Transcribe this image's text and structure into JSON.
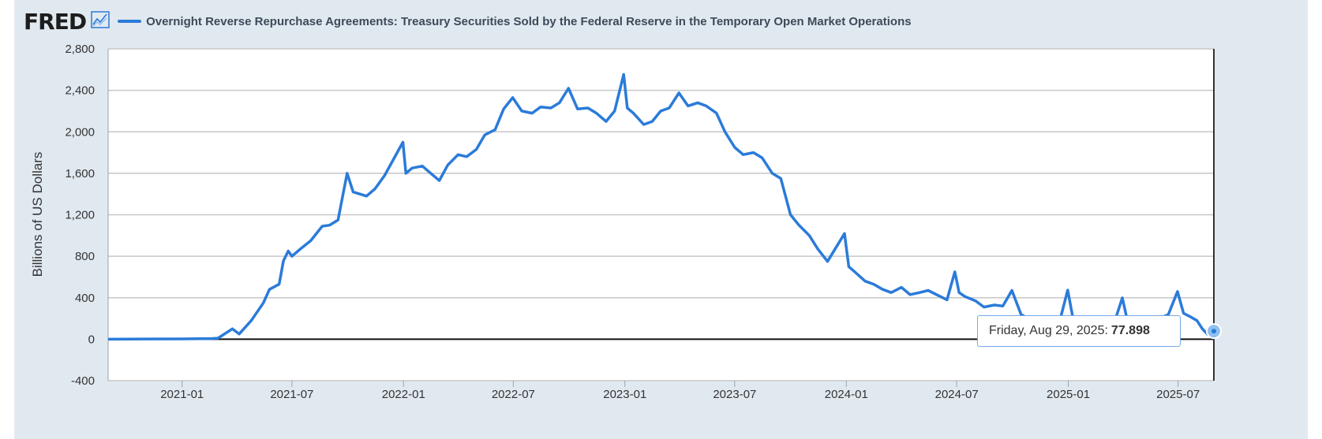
{
  "header": {
    "logo": "FRED",
    "logo_icon": "line-chart-icon",
    "title": "Overnight Reverse Repurchase Agreements: Treasury Securities Sold by the Federal Reserve in the Temporary Open Market Operations"
  },
  "tooltip": {
    "date": "Friday, Aug 29, 2025:",
    "value": "77.898"
  },
  "colors": {
    "series": "#2b7bd9",
    "background": "#e1e9f0",
    "plot": "#ffffff",
    "grid": "#c7c7c7"
  },
  "chart_data": {
    "type": "line",
    "title": "Overnight Reverse Repurchase Agreements: Treasury Securities Sold by the Federal Reserve in the Temporary Open Market Operations",
    "ylabel": "Billions of US Dollars",
    "xlabel": "",
    "ylim": [
      -400,
      2800
    ],
    "yticks": [
      -400,
      0,
      400,
      800,
      1200,
      1600,
      2000,
      2400,
      2800
    ],
    "ytick_labels": [
      "-400",
      "0",
      "400",
      "800",
      "1,200",
      "1,600",
      "2,000",
      "2,400",
      "2,800"
    ],
    "xlim": [
      "2020-09-01",
      "2025-08-29"
    ],
    "xticks": [
      "2021-01",
      "2021-07",
      "2022-01",
      "2022-07",
      "2023-01",
      "2023-07",
      "2024-01",
      "2024-07",
      "2025-01",
      "2025-07"
    ],
    "grid": true,
    "series": [
      {
        "color": "#2b7bd9",
        "points": [
          [
            "2020-09-01",
            0
          ],
          [
            "2020-11-01",
            2
          ],
          [
            "2021-01-01",
            3
          ],
          [
            "2021-02-15",
            5
          ],
          [
            "2021-03-01",
            10
          ],
          [
            "2021-03-25",
            100
          ],
          [
            "2021-04-05",
            50
          ],
          [
            "2021-04-25",
            180
          ],
          [
            "2021-05-15",
            350
          ],
          [
            "2021-05-25",
            480
          ],
          [
            "2021-06-10",
            530
          ],
          [
            "2021-06-17",
            755
          ],
          [
            "2021-06-25",
            850
          ],
          [
            "2021-07-01",
            800
          ],
          [
            "2021-07-15",
            870
          ],
          [
            "2021-08-01",
            950
          ],
          [
            "2021-08-20",
            1090
          ],
          [
            "2021-09-01",
            1100
          ],
          [
            "2021-09-15",
            1150
          ],
          [
            "2021-09-30",
            1600
          ],
          [
            "2021-10-10",
            1420
          ],
          [
            "2021-11-01",
            1380
          ],
          [
            "2021-11-15",
            1450
          ],
          [
            "2021-12-01",
            1580
          ],
          [
            "2021-12-31",
            1900
          ],
          [
            "2022-01-05",
            1600
          ],
          [
            "2022-01-15",
            1650
          ],
          [
            "2022-02-01",
            1670
          ],
          [
            "2022-02-15",
            1600
          ],
          [
            "2022-03-01",
            1530
          ],
          [
            "2022-03-15",
            1680
          ],
          [
            "2022-04-01",
            1780
          ],
          [
            "2022-04-15",
            1760
          ],
          [
            "2022-05-01",
            1830
          ],
          [
            "2022-05-15",
            1970
          ],
          [
            "2022-06-01",
            2020
          ],
          [
            "2022-06-15",
            2220
          ],
          [
            "2022-06-30",
            2330
          ],
          [
            "2022-07-15",
            2200
          ],
          [
            "2022-08-01",
            2180
          ],
          [
            "2022-08-15",
            2240
          ],
          [
            "2022-09-01",
            2230
          ],
          [
            "2022-09-15",
            2280
          ],
          [
            "2022-09-30",
            2420
          ],
          [
            "2022-10-15",
            2220
          ],
          [
            "2022-11-01",
            2230
          ],
          [
            "2022-11-15",
            2180
          ],
          [
            "2022-12-01",
            2100
          ],
          [
            "2022-12-15",
            2200
          ],
          [
            "2022-12-30",
            2554
          ],
          [
            "2023-01-05",
            2230
          ],
          [
            "2023-01-15",
            2180
          ],
          [
            "2023-02-01",
            2070
          ],
          [
            "2023-02-15",
            2100
          ],
          [
            "2023-03-01",
            2200
          ],
          [
            "2023-03-15",
            2230
          ],
          [
            "2023-03-31",
            2375
          ],
          [
            "2023-04-15",
            2250
          ],
          [
            "2023-05-01",
            2280
          ],
          [
            "2023-05-15",
            2250
          ],
          [
            "2023-06-01",
            2180
          ],
          [
            "2023-06-15",
            2000
          ],
          [
            "2023-07-01",
            1850
          ],
          [
            "2023-07-15",
            1780
          ],
          [
            "2023-08-01",
            1800
          ],
          [
            "2023-08-15",
            1750
          ],
          [
            "2023-09-01",
            1600
          ],
          [
            "2023-09-15",
            1550
          ],
          [
            "2023-10-01",
            1200
          ],
          [
            "2023-10-15",
            1100
          ],
          [
            "2023-11-01",
            1000
          ],
          [
            "2023-11-15",
            870
          ],
          [
            "2023-12-01",
            750
          ],
          [
            "2023-12-29",
            1019
          ],
          [
            "2024-01-05",
            700
          ],
          [
            "2024-01-15",
            650
          ],
          [
            "2024-02-01",
            560
          ],
          [
            "2024-02-15",
            530
          ],
          [
            "2024-03-01",
            480
          ],
          [
            "2024-03-15",
            450
          ],
          [
            "2024-04-01",
            500
          ],
          [
            "2024-04-15",
            430
          ],
          [
            "2024-05-01",
            450
          ],
          [
            "2024-05-15",
            470
          ],
          [
            "2024-06-01",
            420
          ],
          [
            "2024-06-15",
            380
          ],
          [
            "2024-06-28",
            650
          ],
          [
            "2024-07-05",
            450
          ],
          [
            "2024-07-15",
            410
          ],
          [
            "2024-08-01",
            370
          ],
          [
            "2024-08-15",
            310
          ],
          [
            "2024-09-01",
            330
          ],
          [
            "2024-09-15",
            320
          ],
          [
            "2024-09-30",
            470
          ],
          [
            "2024-10-15",
            240
          ],
          [
            "2024-11-01",
            180
          ],
          [
            "2024-11-15",
            150
          ],
          [
            "2024-12-01",
            130
          ],
          [
            "2024-12-15",
            110
          ],
          [
            "2024-12-31",
            473
          ],
          [
            "2025-01-10",
            160
          ],
          [
            "2025-02-01",
            100
          ],
          [
            "2025-02-15",
            90
          ],
          [
            "2025-03-01",
            120
          ],
          [
            "2025-03-15",
            110
          ],
          [
            "2025-03-31",
            399
          ],
          [
            "2025-04-10",
            140
          ],
          [
            "2025-05-01",
            120
          ],
          [
            "2025-05-15",
            160
          ],
          [
            "2025-06-01",
            200
          ],
          [
            "2025-06-15",
            240
          ],
          [
            "2025-06-30",
            460
          ],
          [
            "2025-07-10",
            250
          ],
          [
            "2025-07-20",
            220
          ],
          [
            "2025-08-01",
            180
          ],
          [
            "2025-08-10",
            100
          ],
          [
            "2025-08-20",
            40
          ],
          [
            "2025-08-29",
            77.898
          ]
        ]
      }
    ]
  }
}
